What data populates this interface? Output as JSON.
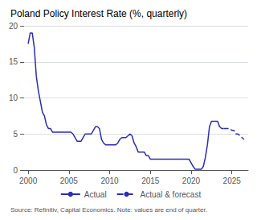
{
  "chart_data": {
    "type": "line",
    "title": "Poland Policy Interest Rate (%, quarterly)",
    "annotations": [
      "Source: Refinitiv, Capital Economics. Note: values are end of quarter."
    ],
    "xlim": [
      1999.5,
      2027
    ],
    "xticks": [
      2000,
      2005,
      2010,
      2015,
      2020,
      2025
    ],
    "ylim": [
      0,
      20
    ],
    "yticks": [
      0,
      5,
      10,
      15,
      20
    ],
    "grid": "y",
    "legend": "bottom",
    "series": [
      {
        "name": "Actual",
        "color": "#2b2db5",
        "line_style": "solid",
        "x": [
          2000.0,
          2000.25,
          2000.5,
          2000.75,
          2001.0,
          2001.25,
          2001.5,
          2001.75,
          2002.0,
          2002.25,
          2002.5,
          2002.75,
          2003.0,
          2003.25,
          2003.5,
          2003.75,
          2004.0,
          2004.25,
          2004.5,
          2004.75,
          2005.0,
          2005.25,
          2005.5,
          2005.75,
          2006.0,
          2006.25,
          2006.5,
          2006.75,
          2007.0,
          2007.25,
          2007.5,
          2007.75,
          2008.0,
          2008.25,
          2008.5,
          2008.75,
          2009.0,
          2009.25,
          2009.5,
          2009.75,
          2010.0,
          2010.25,
          2010.5,
          2010.75,
          2011.0,
          2011.25,
          2011.5,
          2011.75,
          2012.0,
          2012.25,
          2012.5,
          2012.75,
          2013.0,
          2013.25,
          2013.5,
          2013.75,
          2014.0,
          2014.25,
          2014.5,
          2014.75,
          2015.0,
          2015.25,
          2015.5,
          2015.75,
          2016.0,
          2016.25,
          2016.5,
          2016.75,
          2017.0,
          2017.25,
          2017.5,
          2017.75,
          2018.0,
          2018.25,
          2018.5,
          2018.75,
          2019.0,
          2019.25,
          2019.5,
          2019.75,
          2020.0,
          2020.25,
          2020.5,
          2020.75,
          2021.0,
          2021.25,
          2021.5,
          2021.75,
          2022.0,
          2022.25,
          2022.5,
          2022.75,
          2023.0,
          2023.25,
          2023.5,
          2023.75,
          2024.0
        ],
        "values": [
          17.5,
          19.0,
          19.0,
          17.0,
          13.0,
          11.0,
          9.5,
          8.0,
          7.5,
          6.25,
          5.75,
          5.75,
          5.25,
          5.25,
          5.25,
          5.25,
          5.25,
          5.25,
          5.25,
          5.25,
          5.25,
          5.25,
          5.0,
          4.5,
          4.0,
          4.0,
          4.0,
          4.5,
          5.0,
          5.0,
          5.0,
          5.0,
          5.5,
          6.0,
          6.0,
          5.75,
          4.25,
          3.75,
          3.5,
          3.5,
          3.5,
          3.5,
          3.5,
          3.5,
          3.75,
          4.25,
          4.5,
          4.5,
          4.5,
          4.75,
          5.0,
          4.75,
          3.75,
          3.25,
          2.5,
          2.5,
          2.5,
          2.5,
          2.0,
          2.0,
          1.5,
          1.5,
          1.5,
          1.5,
          1.5,
          1.5,
          1.5,
          1.5,
          1.5,
          1.5,
          1.5,
          1.5,
          1.5,
          1.5,
          1.5,
          1.5,
          1.5,
          1.5,
          1.5,
          1.5,
          1.0,
          0.5,
          0.1,
          0.1,
          0.1,
          0.1,
          0.5,
          1.75,
          3.5,
          6.0,
          6.75,
          6.75,
          6.75,
          6.75,
          6.0,
          5.75,
          5.75
        ]
      },
      {
        "name": "Actual & forecast",
        "color": "#2b2db5",
        "line_style": "dashed",
        "x": [
          2024.0,
          2024.25,
          2024.5,
          2024.75,
          2025.0,
          2025.25,
          2025.5,
          2025.75,
          2026.0,
          2026.25,
          2026.5
        ],
        "values": [
          5.75,
          5.75,
          5.75,
          5.75,
          5.5,
          5.5,
          5.0,
          5.0,
          4.75,
          4.5,
          4.25
        ]
      }
    ]
  }
}
